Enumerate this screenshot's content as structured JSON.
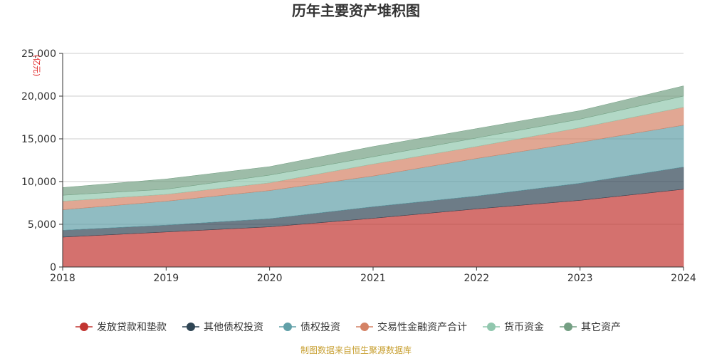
{
  "chart_data": {
    "type": "area",
    "stacked": true,
    "title": "历年主要资产堆积图",
    "unit_label": "亿元",
    "x": [
      "2018",
      "2019",
      "2020",
      "2021",
      "2022",
      "2023",
      "2024"
    ],
    "ylim": [
      0,
      25000
    ],
    "yticks": [
      0,
      5000,
      10000,
      15000,
      20000,
      25000
    ],
    "ytick_labels": [
      "0",
      "5,000",
      "10,000",
      "15,000",
      "20,000",
      "25,000"
    ],
    "grid": true,
    "legend_position": "bottom",
    "series": [
      {
        "name": "发放贷款和垫款",
        "color": "#c23531",
        "values": [
          3500,
          4100,
          4700,
          5700,
          6800,
          7800,
          9100
        ]
      },
      {
        "name": "其他债权投资",
        "color": "#2f4554",
        "values": [
          800,
          800,
          950,
          1350,
          1500,
          2000,
          2600
        ]
      },
      {
        "name": "债权投资",
        "color": "#61a0a8",
        "values": [
          2400,
          2800,
          3300,
          3600,
          4400,
          4800,
          4900
        ]
      },
      {
        "name": "交易性金融资产合计",
        "color": "#d48265",
        "values": [
          1000,
          800,
          900,
          1400,
          1400,
          1700,
          2100
        ]
      },
      {
        "name": "货币资金",
        "color": "#91c7ae",
        "values": [
          700,
          600,
          900,
          850,
          1000,
          1000,
          1300
        ]
      },
      {
        "name": "其它资产",
        "color": "#749f83",
        "values": [
          900,
          1200,
          1000,
          1200,
          1100,
          1000,
          1200
        ]
      }
    ]
  },
  "footer": "制图数据来自恒生聚源数据库"
}
